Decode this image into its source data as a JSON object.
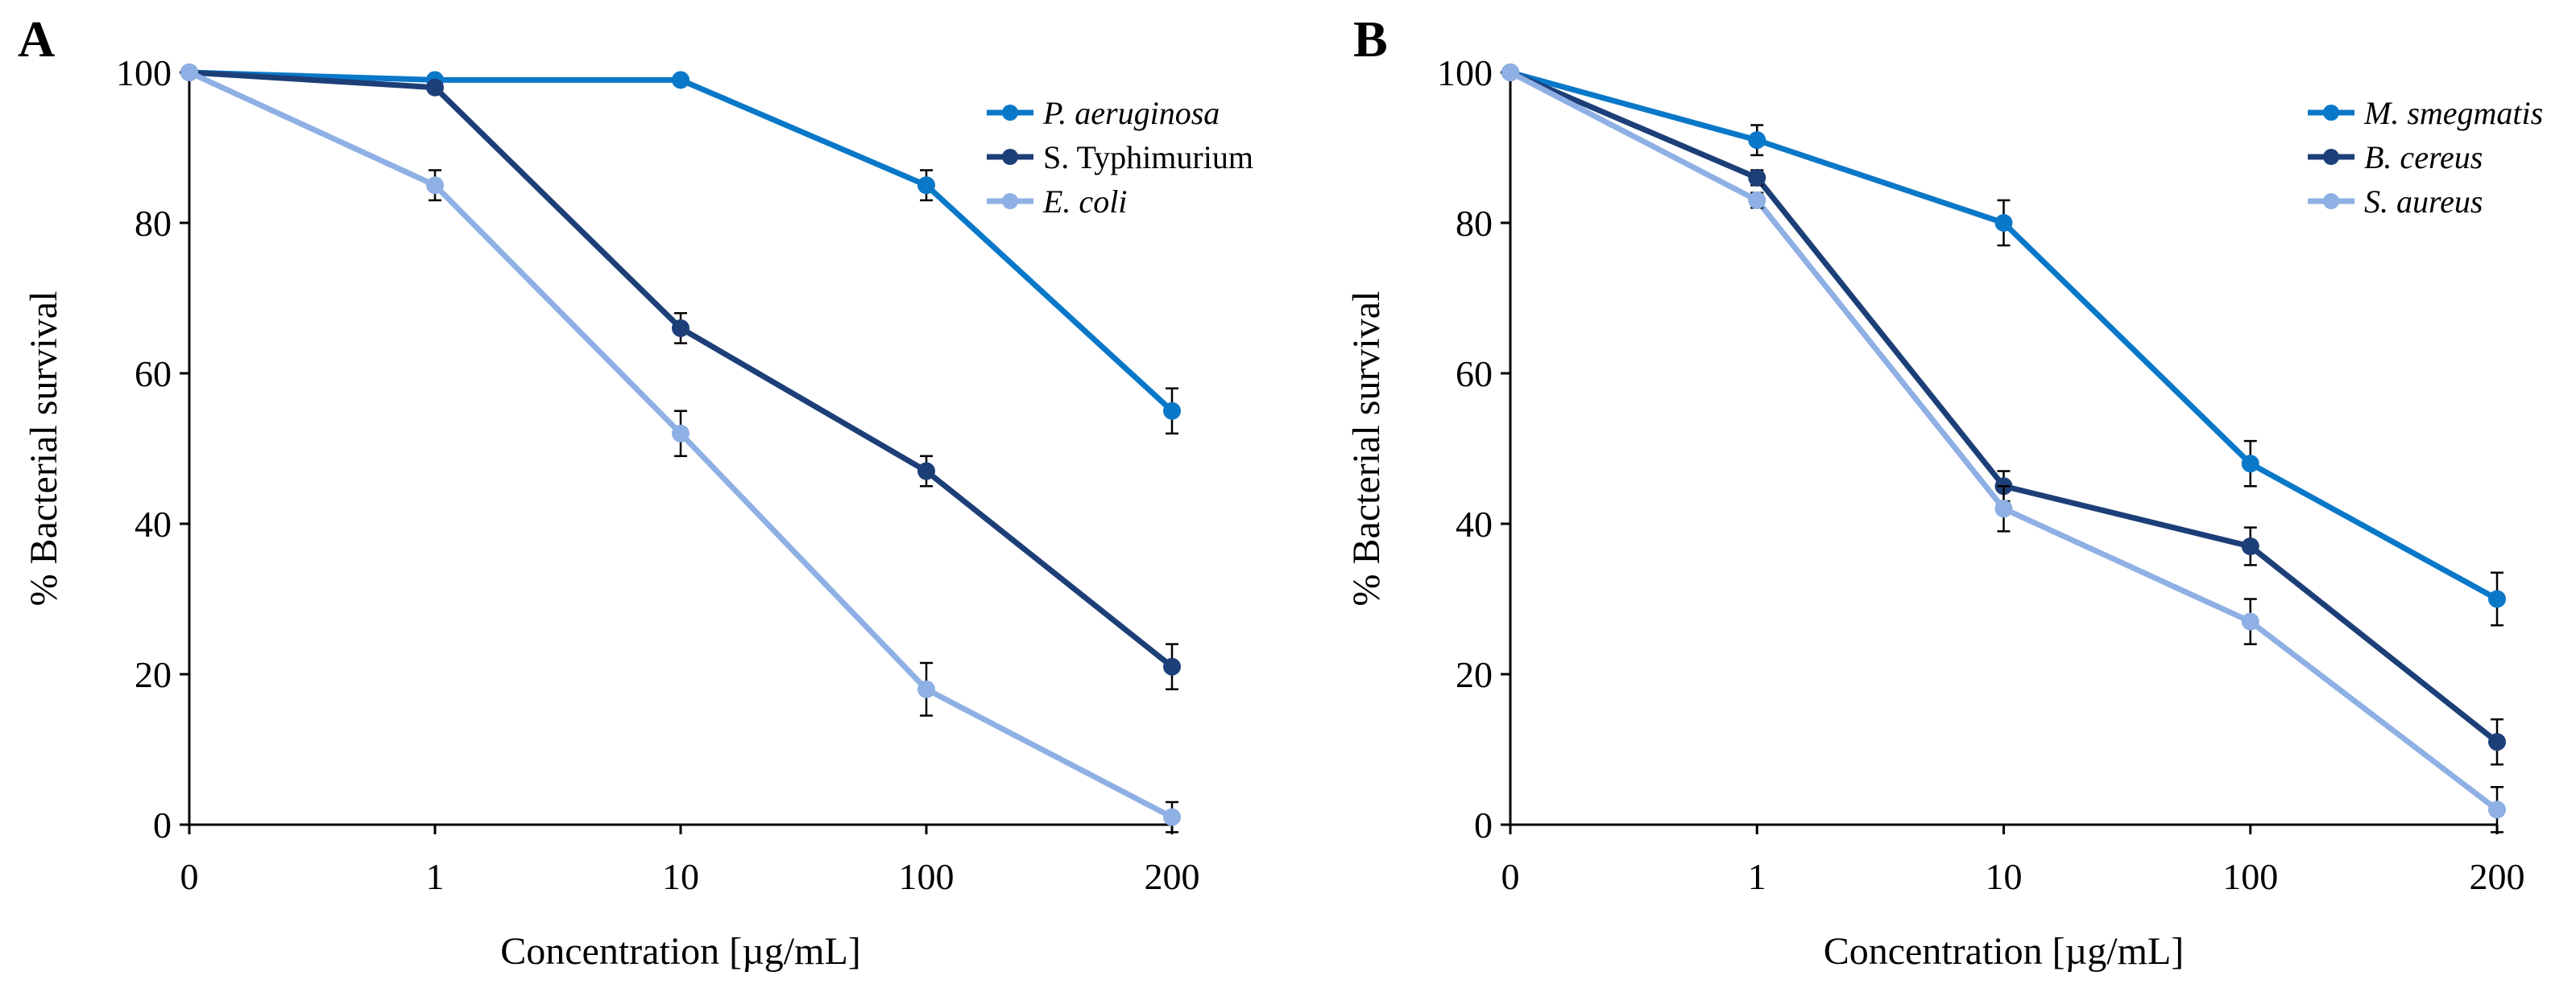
{
  "chart_data": [
    {
      "panel": "A",
      "type": "line",
      "categories": [
        "0",
        "1",
        "10",
        "100",
        "200"
      ],
      "xlabel": "Concentration [µg/mL]",
      "ylabel": "% Bacterial survival",
      "ylim": [
        0,
        100
      ],
      "yticks": [
        0,
        20,
        40,
        60,
        80,
        100
      ],
      "grid": false,
      "legend_position": "top-right",
      "series": [
        {
          "name": "P. aeruginosa",
          "italic": true,
          "color": "#0a78c8",
          "values": [
            100,
            99,
            99,
            85,
            55
          ],
          "errors": [
            0,
            0,
            0,
            2,
            3
          ]
        },
        {
          "name": "S. Typhimurium",
          "italic": false,
          "color": "#1d3f78",
          "values": [
            100,
            98,
            66,
            47,
            21
          ],
          "errors": [
            0,
            0,
            2,
            2,
            3
          ]
        },
        {
          "name": "E. coli",
          "italic": true,
          "color": "#8eb0e4",
          "values": [
            100,
            85,
            52,
            18,
            1
          ],
          "errors": [
            0,
            2,
            3,
            3.5,
            2
          ]
        }
      ]
    },
    {
      "panel": "B",
      "type": "line",
      "categories": [
        "0",
        "1",
        "10",
        "100",
        "200"
      ],
      "xlabel": "Concentration [µg/mL]",
      "ylabel": "% Bacterial survival",
      "ylim": [
        0,
        100
      ],
      "yticks": [
        0,
        20,
        40,
        60,
        80,
        100
      ],
      "grid": false,
      "legend_position": "top-right",
      "series": [
        {
          "name": "M. smegmatis",
          "italic": true,
          "color": "#0a78c8",
          "values": [
            100,
            91,
            80,
            48,
            30
          ],
          "errors": [
            0,
            2,
            3,
            3,
            3.5
          ]
        },
        {
          "name": "B. cereus",
          "italic": true,
          "color": "#1d3f78",
          "values": [
            100,
            86,
            45,
            37,
            11
          ],
          "errors": [
            0,
            1,
            2,
            2.5,
            3
          ]
        },
        {
          "name": "S. aureus",
          "italic": true,
          "color": "#8eb0e4",
          "values": [
            100,
            83,
            42,
            27,
            2
          ],
          "errors": [
            0,
            1,
            3,
            3,
            3
          ]
        }
      ]
    }
  ]
}
